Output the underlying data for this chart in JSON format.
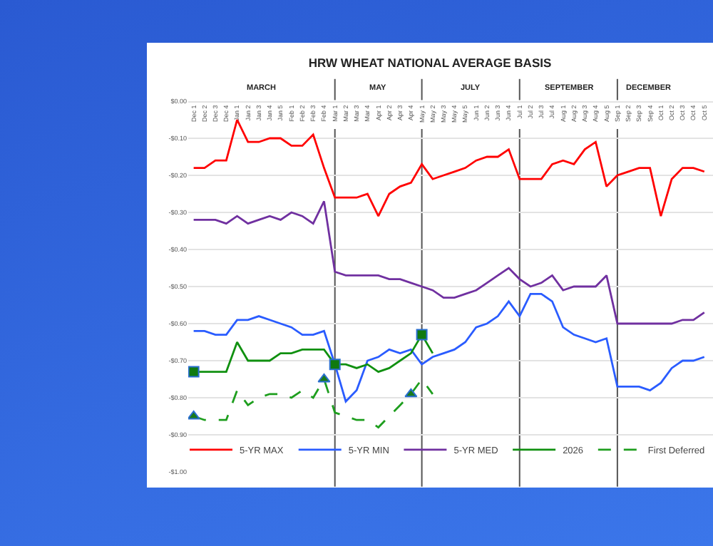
{
  "chart_data": {
    "type": "line",
    "title": "HRW WHEAT NATIONAL AVERAGE BASIS",
    "categories": [
      "Dec 1",
      "Dec 2",
      "Dec 3",
      "Dec 4",
      "Jan 1",
      "Jan 2",
      "Jan 3",
      "Jan 4",
      "Jan 5",
      "Feb 1",
      "Feb 2",
      "Feb 3",
      "Feb 4",
      "Mar 1",
      "Mar 2",
      "Mar 3",
      "Mar 4",
      "Apr 1",
      "Apr 2",
      "Apr 3",
      "Apr 4",
      "May 1",
      "May 2",
      "May 3",
      "May 4",
      "May 5",
      "Jun 1",
      "Jun 2",
      "Jun 3",
      "Jun 4",
      "Jul 1",
      "Jul 2",
      "Jul 3",
      "Jul 4",
      "Aug 1",
      "Aug 2",
      "Aug 3",
      "Aug 4",
      "Aug 5",
      "Sep 1",
      "Sep 2",
      "Sep 3",
      "Sep 4",
      "Oct 1",
      "Oct 2",
      "Oct 3",
      "Oct 4",
      "Oct 5"
    ],
    "series": [
      {
        "name": "5-YR MAX",
        "color": "#ff0000",
        "values": [
          -0.18,
          -0.18,
          -0.16,
          -0.16,
          -0.05,
          -0.11,
          -0.11,
          -0.1,
          -0.1,
          -0.12,
          -0.12,
          -0.09,
          -0.18,
          -0.26,
          -0.26,
          -0.26,
          -0.25,
          -0.31,
          -0.25,
          -0.23,
          -0.22,
          -0.17,
          -0.21,
          -0.2,
          -0.19,
          -0.18,
          -0.16,
          -0.15,
          -0.15,
          -0.13,
          -0.21,
          -0.21,
          -0.21,
          -0.17,
          -0.16,
          -0.17,
          -0.13,
          -0.11,
          -0.23,
          -0.2,
          -0.19,
          -0.18,
          -0.18,
          -0.31,
          -0.21,
          -0.18,
          -0.18,
          -0.19
        ]
      },
      {
        "name": "5-YR MIN",
        "color": "#2a5cff",
        "values": [
          -0.62,
          -0.62,
          -0.63,
          -0.63,
          -0.59,
          -0.59,
          -0.58,
          -0.59,
          -0.6,
          -0.61,
          -0.63,
          -0.63,
          -0.62,
          -0.71,
          -0.81,
          -0.78,
          -0.7,
          -0.69,
          -0.67,
          -0.68,
          -0.67,
          -0.71,
          -0.69,
          -0.68,
          -0.67,
          -0.65,
          -0.61,
          -0.6,
          -0.58,
          -0.54,
          -0.58,
          -0.52,
          -0.52,
          -0.54,
          -0.61,
          -0.63,
          -0.64,
          -0.65,
          -0.64,
          -0.77,
          -0.77,
          -0.77,
          -0.78,
          -0.76,
          -0.72,
          -0.7,
          -0.7,
          -0.69
        ]
      },
      {
        "name": "5-YR MED",
        "color": "#7030a0",
        "values": [
          -0.32,
          -0.32,
          -0.32,
          -0.33,
          -0.31,
          -0.33,
          -0.32,
          -0.31,
          -0.32,
          -0.3,
          -0.31,
          -0.33,
          -0.27,
          -0.46,
          -0.47,
          -0.47,
          -0.47,
          -0.47,
          -0.48,
          -0.48,
          -0.49,
          -0.5,
          -0.51,
          -0.53,
          -0.53,
          -0.52,
          -0.51,
          -0.49,
          -0.47,
          -0.45,
          -0.48,
          -0.5,
          -0.49,
          -0.47,
          -0.51,
          -0.5,
          -0.5,
          -0.5,
          -0.47,
          -0.6,
          -0.6,
          -0.6,
          -0.6,
          -0.6,
          -0.6,
          -0.59,
          -0.59,
          -0.57
        ]
      },
      {
        "name": "2026",
        "color": "#109010",
        "values": [
          -0.73,
          -0.73,
          -0.73,
          -0.73,
          -0.65,
          -0.7,
          -0.7,
          -0.7,
          -0.68,
          -0.68,
          -0.67,
          -0.67,
          -0.67,
          -0.71,
          -0.71,
          -0.72,
          -0.71,
          -0.73,
          -0.72,
          -0.7,
          -0.68,
          -0.63,
          -0.68,
          null,
          null,
          null,
          null,
          null,
          null,
          null,
          null,
          null,
          null,
          null,
          null,
          null,
          null,
          null,
          null,
          null,
          null,
          null,
          null,
          null,
          null,
          null,
          null,
          null
        ]
      },
      {
        "name": "First Deferred",
        "color": "#1e9e1e",
        "line_style": "dashed",
        "values": [
          -0.85,
          -0.86,
          -0.86,
          -0.86,
          -0.78,
          -0.82,
          -0.8,
          -0.79,
          -0.79,
          -0.8,
          -0.78,
          -0.8,
          -0.75,
          -0.84,
          -0.85,
          -0.86,
          -0.86,
          -0.88,
          -0.85,
          -0.82,
          -0.79,
          -0.75,
          -0.79,
          null,
          null,
          null,
          null,
          null,
          null,
          null,
          null,
          null,
          null,
          null,
          null,
          null,
          null,
          null,
          null,
          null,
          null,
          null,
          null,
          null,
          null,
          null,
          null,
          null
        ]
      },
      {
        "type": "scatter",
        "marker": "square",
        "color": "#107a10",
        "values": [
          -0.73,
          null,
          null,
          null,
          null,
          null,
          null,
          null,
          null,
          null,
          null,
          null,
          null,
          -0.71,
          null,
          null,
          null,
          null,
          null,
          null,
          null,
          -0.63,
          null,
          null,
          null,
          null,
          null,
          null,
          null,
          null,
          null,
          null,
          null,
          null,
          null,
          null,
          null,
          null,
          null,
          null,
          null,
          null,
          null,
          null,
          null,
          null,
          null,
          null
        ]
      },
      {
        "type": "scatter",
        "marker": "triangle",
        "color": "#1a7a1a",
        "values": [
          -0.85,
          null,
          null,
          null,
          null,
          null,
          null,
          null,
          null,
          null,
          null,
          null,
          -0.75,
          null,
          null,
          null,
          null,
          null,
          null,
          null,
          -0.79,
          null,
          null,
          null,
          null,
          null,
          null,
          null,
          null,
          null,
          null,
          null,
          null,
          null,
          null,
          null,
          null,
          null,
          null,
          null,
          null,
          null,
          null,
          null,
          null,
          null,
          null,
          null
        ]
      }
    ],
    "annotations": [
      "MARCH",
      "MAY",
      "JULY",
      "SEPTEMBER",
      "DECEMBER"
    ],
    "ref_lines": [
      {
        "axis": "x",
        "value": "Mar 1",
        "color": "#555555"
      },
      {
        "axis": "x",
        "value": "May 1",
        "color": "#555555"
      },
      {
        "axis": "x",
        "value": "Jul 1",
        "color": "#555555"
      },
      {
        "axis": "x",
        "value": "Sep 1",
        "color": "#555555"
      }
    ],
    "ylim": [
      -1.0,
      0.0
    ],
    "yticks": [
      {
        "value": 0,
        "label": "$0.00"
      },
      {
        "value": -0.1,
        "label": "-$0.10"
      },
      {
        "value": -0.2,
        "label": "-$0.20"
      },
      {
        "value": -0.3,
        "label": "-$0.30"
      },
      {
        "value": -0.4,
        "label": "-$0.40"
      },
      {
        "value": -0.5,
        "label": "-$0.50"
      },
      {
        "value": -0.6,
        "label": "-$0.60"
      },
      {
        "value": -0.7,
        "label": "-$0.70"
      },
      {
        "value": -0.8,
        "label": "-$0.80"
      },
      {
        "value": -0.9,
        "label": "-$0.90"
      },
      {
        "value": -1.0,
        "label": "-$1.00"
      }
    ],
    "grid": "y",
    "legend": "bottom"
  }
}
